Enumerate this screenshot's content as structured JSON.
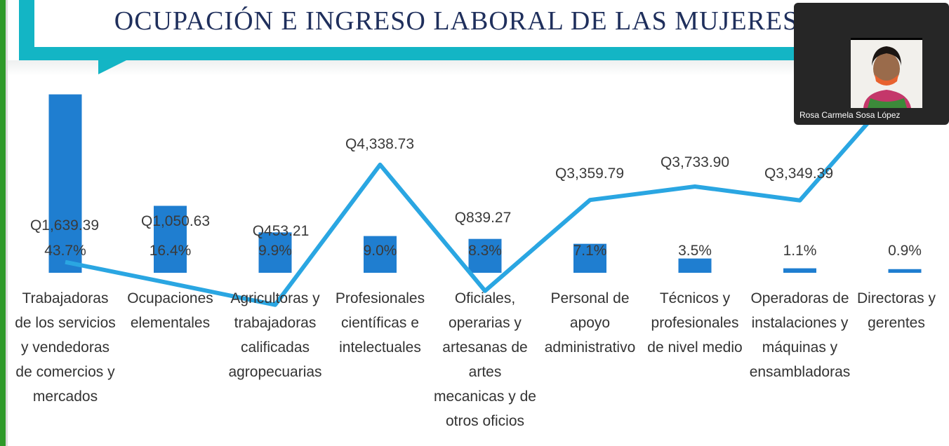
{
  "slide": {
    "title": "OCUPACIÓN E INGRESO LABORAL DE LAS MUJERES"
  },
  "video": {
    "participant_name": "Rosa Carmela Sosa López"
  },
  "colors": {
    "bar": "#1f7ed0",
    "line": "#2aa6e2",
    "accent": "#13b5c5",
    "title": "#1f2f5c"
  },
  "chart_data": {
    "type": "bar+line",
    "title": "",
    "categories": [
      "Trabajadoras\nde los servicios\ny vendedoras\nde comercios y\nmercados",
      "Ocupaciones\nelementales",
      "Agricultoras y\ntrabajadoras\ncalificadas\nagropecuarias",
      "Profesionales\ncientíficas e\nintelectuales",
      "Oficiales,\noperarias y\nartesanas de\nartes\nmecanicas y de\notros oficios",
      "Personal de\napoyo\nadministrativo",
      "Técnicos y\nprofesionales\nde nivel medio",
      "Operadoras de\ninstalaciones y\nmáquinas y\nensambladoras",
      "Directoras y\ngerentes"
    ],
    "series": [
      {
        "type": "bar",
        "unit": "%",
        "values": [
          43.7,
          16.4,
          9.9,
          9.0,
          8.3,
          7.1,
          3.5,
          1.1,
          0.9
        ],
        "labels": [
          "43.7%",
          "16.4%",
          "9.9%",
          "9.0%",
          "8.3%",
          "7.1%",
          "3.5%",
          "1.1%",
          "0.9%"
        ]
      },
      {
        "type": "line",
        "unit": "Q",
        "values": [
          1639.39,
          1050.63,
          453.21,
          4338.73,
          839.27,
          3359.79,
          3733.9,
          3349.39,
          5800
        ],
        "labels": [
          "Q1,639.39",
          "Q1,050.63",
          "Q453.21",
          "Q4,338.73",
          "Q839.27",
          "Q3,359.79",
          "Q3,733.90",
          "Q3,349.39",
          ""
        ]
      }
    ],
    "bar_ylim": [
      0,
      45
    ],
    "line_ylim": [
      0,
      7000
    ],
    "grid": false
  }
}
